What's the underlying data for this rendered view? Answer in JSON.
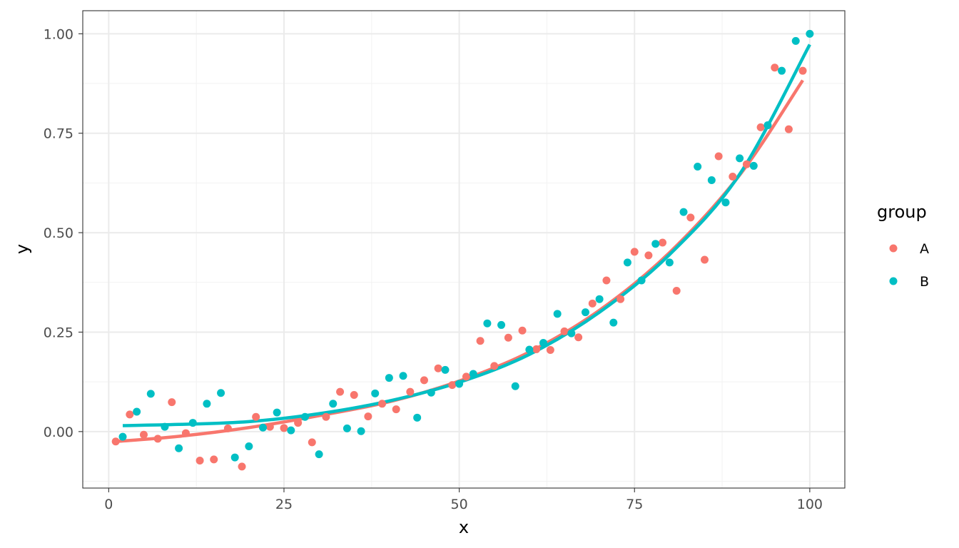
{
  "chart_data": {
    "type": "scatter",
    "xlabel": "x",
    "ylabel": "y",
    "xlim": [
      -3.7,
      105
    ],
    "ylim": [
      -0.142,
      1.058
    ],
    "x_ticks": [
      0,
      25,
      50,
      75,
      100
    ],
    "x_tick_labels": [
      "0",
      "25",
      "50",
      "75",
      "100"
    ],
    "y_ticks": [
      0,
      0.25,
      0.5,
      0.75,
      1
    ],
    "y_tick_labels": [
      "0.00",
      "0.25",
      "0.50",
      "0.75",
      "1.00"
    ],
    "grid": true,
    "legend": {
      "title": "group",
      "position": "right",
      "entries": [
        "A",
        "B"
      ]
    },
    "series": [
      {
        "name": "A",
        "color": "#F8766D",
        "x": [
          1,
          3,
          5,
          7,
          9,
          11,
          13,
          15,
          17,
          19,
          21,
          23,
          25,
          27,
          29,
          31,
          33,
          35,
          37,
          39,
          41,
          43,
          45,
          47,
          49,
          51,
          53,
          55,
          57,
          59,
          61,
          63,
          65,
          67,
          69,
          71,
          73,
          75,
          77,
          79,
          81,
          83,
          85,
          87,
          89,
          91,
          93,
          95,
          97,
          99
        ],
        "y": [
          -0.025,
          0.043,
          -0.008,
          -0.018,
          0.074,
          -0.004,
          -0.073,
          -0.07,
          0.008,
          -0.088,
          0.037,
          0.012,
          0.009,
          0.022,
          -0.027,
          0.037,
          0.1,
          0.092,
          0.038,
          0.07,
          0.056,
          0.1,
          0.129,
          0.159,
          0.117,
          0.138,
          0.228,
          0.165,
          0.236,
          0.254,
          0.207,
          0.205,
          0.252,
          0.237,
          0.322,
          0.38,
          0.333,
          0.452,
          0.443,
          0.475,
          0.354,
          0.538,
          0.432,
          0.692,
          0.641,
          0.672,
          0.765,
          0.915,
          0.76,
          0.907
        ],
        "trend": {
          "x": [
            1,
            10,
            20,
            30,
            40,
            50,
            60,
            70,
            80,
            90,
            99
          ],
          "y": [
            -0.025,
            -0.012,
            0.01,
            0.04,
            0.075,
            0.127,
            0.2,
            0.305,
            0.45,
            0.645,
            0.883
          ]
        }
      },
      {
        "name": "B",
        "color": "#00BFC4",
        "x": [
          2,
          4,
          6,
          8,
          10,
          12,
          14,
          16,
          18,
          20,
          22,
          24,
          26,
          28,
          30,
          32,
          34,
          36,
          38,
          40,
          42,
          44,
          46,
          48,
          50,
          52,
          54,
          56,
          58,
          60,
          62,
          64,
          66,
          68,
          70,
          72,
          74,
          76,
          78,
          80,
          82,
          84,
          86,
          88,
          90,
          92,
          94,
          96,
          98,
          100
        ],
        "y": [
          -0.013,
          0.05,
          0.095,
          0.012,
          -0.042,
          0.022,
          0.07,
          0.097,
          -0.065,
          -0.037,
          0.01,
          0.048,
          0.003,
          0.037,
          -0.057,
          0.07,
          0.008,
          0.001,
          0.096,
          0.135,
          0.14,
          0.035,
          0.098,
          0.155,
          0.12,
          0.145,
          0.272,
          0.268,
          0.114,
          0.206,
          0.223,
          0.296,
          0.247,
          0.3,
          0.333,
          0.274,
          0.425,
          0.38,
          0.472,
          0.425,
          0.552,
          0.666,
          0.632,
          0.576,
          0.687,
          0.668,
          0.77,
          0.907,
          0.982,
          1.0
        ],
        "trend": {
          "x": [
            2,
            10,
            20,
            30,
            40,
            50,
            60,
            70,
            80,
            90,
            100
          ],
          "y": [
            0.015,
            0.018,
            0.025,
            0.045,
            0.077,
            0.124,
            0.194,
            0.3,
            0.445,
            0.647,
            0.973
          ]
        }
      }
    ]
  }
}
